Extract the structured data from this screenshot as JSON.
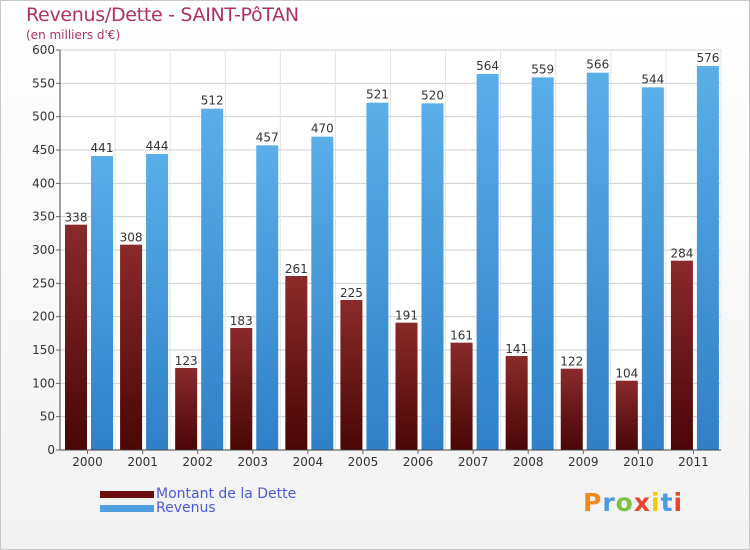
{
  "title": "Revenus/Dette - SAINT-PôTAN",
  "subtitle": "(en milliers d'€)",
  "brand": "Proxiti",
  "colors": {
    "dette": "#6b0d0d",
    "dette_light": "#9a3b3b",
    "revenus": "#4f9fe0",
    "revenus_light": "#6bb6ee",
    "grid": "#cfcfcf",
    "axis_text": "#333333",
    "accent": "#b03060",
    "legend_text": "#4a5ad8"
  },
  "chart_data": {
    "type": "bar",
    "title": "Revenus/Dette - SAINT-PôTAN",
    "ylabel": "(en milliers d'€)",
    "xlabel": "",
    "categories": [
      "2000",
      "2001",
      "2002",
      "2003",
      "2004",
      "2005",
      "2006",
      "2007",
      "2008",
      "2009",
      "2010",
      "2011"
    ],
    "series": [
      {
        "name": "Montant de la Dette",
        "values": [
          338,
          308,
          123,
          183,
          261,
          225,
          191,
          161,
          141,
          122,
          104,
          284
        ]
      },
      {
        "name": "Revenus",
        "values": [
          441,
          444,
          512,
          457,
          470,
          521,
          520,
          564,
          559,
          566,
          544,
          576
        ]
      }
    ],
    "ylim": [
      0,
      600
    ],
    "yticks": [
      0,
      50,
      100,
      150,
      200,
      250,
      300,
      350,
      400,
      450,
      500,
      550,
      600
    ],
    "grid": true,
    "legend": "bottom-left"
  }
}
